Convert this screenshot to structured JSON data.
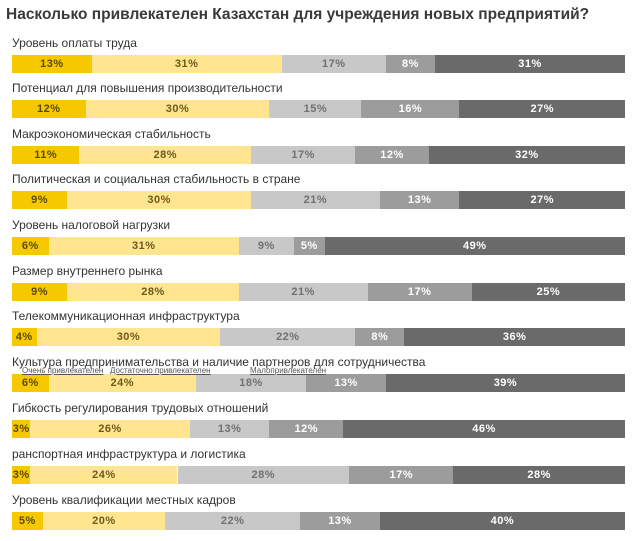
{
  "chart_data": {
    "type": "bar",
    "stacked": true,
    "orientation": "horizontal",
    "title": "Насколько привлекателен Казахстан для учреждения новых предприятий?",
    "categories": [
      "Уровень оплаты труда",
      "Потенциал для повышения производительности",
      "Макроэкономическая стабильность",
      "Политическая и социальная стабильность в стране",
      "Уровень налоговой нагрузки",
      "Размер внутреннего рынка",
      "Телекоммуникационная инфраструктура",
      "Культура предпринимательства и наличие партнеров для сотрудничества",
      "Гибкость регулирования трудовых отношений",
      "ранспортная инфраструктура и логистика",
      "Уровень квалификации местных кадров"
    ],
    "series": [
      {
        "name": "Очень привлекателен",
        "color": "#F5C800",
        "values": [
          13,
          12,
          11,
          9,
          6,
          9,
          4,
          6,
          3,
          3,
          5
        ]
      },
      {
        "name": "Достаточно привлекателен",
        "color": "#FFE58F",
        "values": [
          31,
          30,
          28,
          30,
          31,
          28,
          30,
          24,
          26,
          24,
          20
        ]
      },
      {
        "name": "Малопривлекателен",
        "color": "#C8C8C8",
        "values": [
          17,
          15,
          17,
          21,
          9,
          21,
          22,
          18,
          13,
          28,
          22
        ]
      },
      {
        "name": "",
        "color": "#9C9C9C",
        "values": [
          8,
          16,
          12,
          13,
          5,
          17,
          8,
          13,
          12,
          17,
          13
        ]
      },
      {
        "name": "",
        "color": "#6A6A6A",
        "values": [
          31,
          27,
          32,
          27,
          49,
          25,
          36,
          39,
          46,
          28,
          40
        ]
      }
    ],
    "value_suffix": "%",
    "legend": "inline-above-row-8",
    "grid": false
  }
}
